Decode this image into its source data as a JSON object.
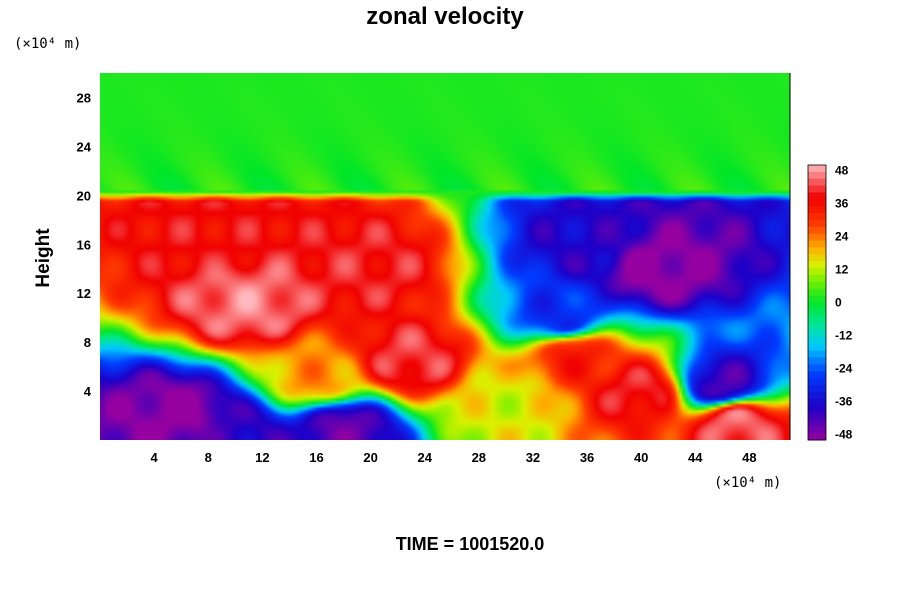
{
  "chart_data": {
    "type": "heatmap",
    "title": "zonal velocity",
    "ylabel": "Height",
    "x_unit": "(×10⁴ m)",
    "y_unit": "(×10⁴ m)",
    "xlim": [
      0,
      51
    ],
    "ylim": [
      0,
      30
    ],
    "x_ticks": [
      "4",
      "8",
      "12",
      "16",
      "20",
      "24",
      "28",
      "32",
      "36",
      "40",
      "44",
      "48"
    ],
    "x_tick_values": [
      4,
      8,
      12,
      16,
      20,
      24,
      28,
      32,
      36,
      40,
      44,
      48
    ],
    "y_ticks": [
      "4",
      "8",
      "12",
      "16",
      "20",
      "24",
      "28"
    ],
    "y_tick_values": [
      4,
      8,
      12,
      16,
      20,
      24,
      28
    ],
    "colorbar": {
      "range": [
        -50,
        50
      ],
      "ticks": [
        "48",
        "36",
        "24",
        "12",
        "0",
        "-12",
        "-24",
        "-36",
        "-48"
      ],
      "tick_values": [
        48,
        36,
        24,
        12,
        0,
        -12,
        -24,
        -36,
        -48
      ]
    },
    "features": [
      {
        "x": 11,
        "y": 11,
        "value": 46
      },
      {
        "x": 20,
        "y": 14,
        "value": 40
      },
      {
        "x": 9,
        "y": 17,
        "value": 38
      },
      {
        "x": 23,
        "y": 6.5,
        "value": 42
      },
      {
        "x": 16,
        "y": 5,
        "value": 22
      },
      {
        "x": 6,
        "y": 2,
        "value": -50
      },
      {
        "x": 18,
        "y": 1,
        "value": -45
      },
      {
        "x": 10,
        "y": 0.5,
        "value": -40
      },
      {
        "x": 41,
        "y": 14,
        "value": -50
      },
      {
        "x": 36,
        "y": 16,
        "value": -38
      },
      {
        "x": 34,
        "y": 10,
        "value": -30
      },
      {
        "x": 46,
        "y": 4.5,
        "value": -42
      },
      {
        "x": 40,
        "y": 4,
        "value": 40
      },
      {
        "x": 35,
        "y": 7,
        "value": 34
      },
      {
        "x": 47,
        "y": 1.5,
        "value": 45
      },
      {
        "x": 30,
        "y": 3,
        "value": 14
      }
    ],
    "background_value": 2
  },
  "footer": "TIME = 1001520.0"
}
